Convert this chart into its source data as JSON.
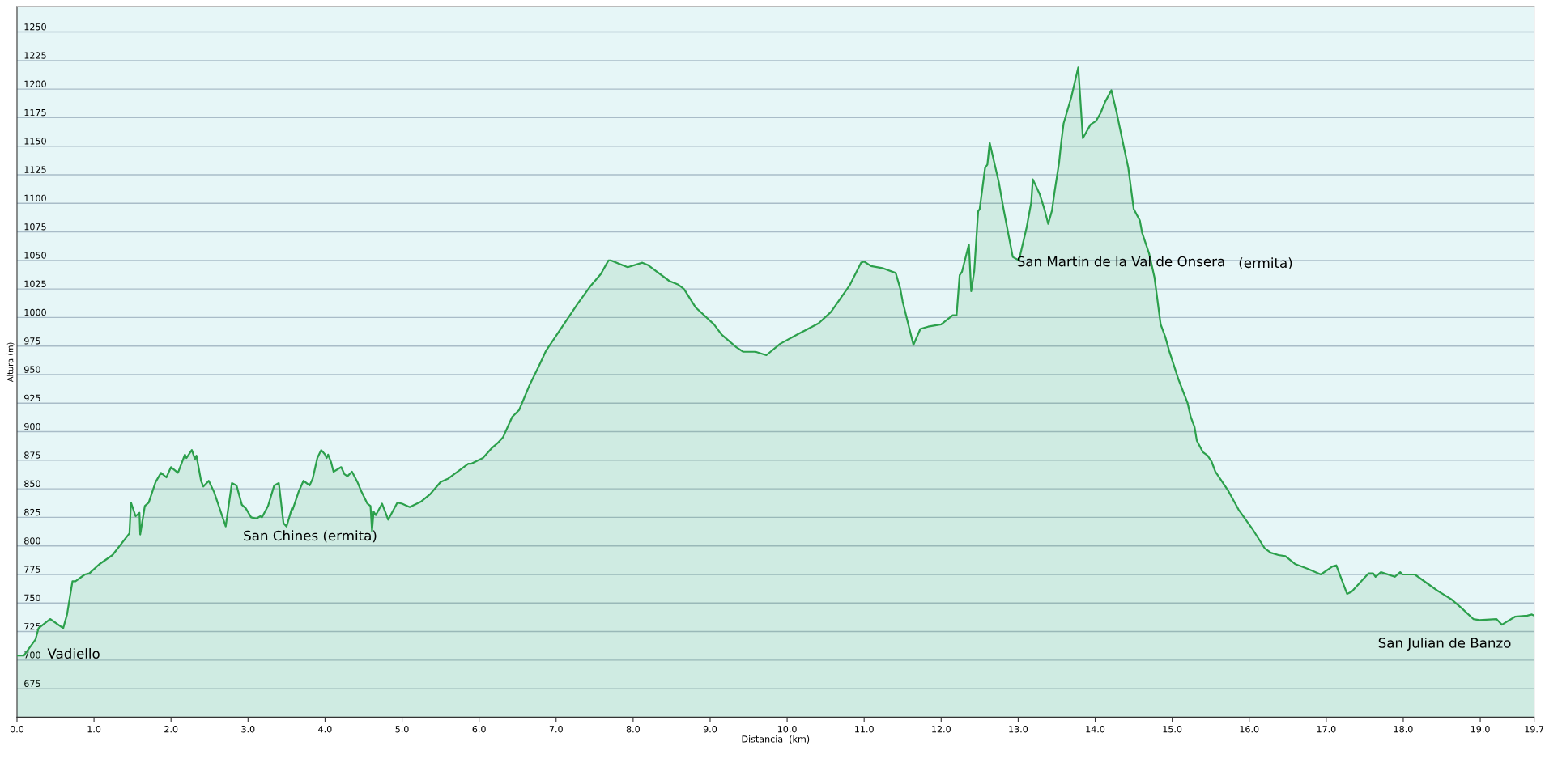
{
  "chart_data": {
    "type": "area",
    "xlabel": "Distancia  (km)",
    "ylabel": "Altura (m)",
    "x": [
      0,
      0.09,
      0.24,
      0.28,
      0.43,
      0.6,
      0.65,
      0.72,
      0.76,
      0.88,
      0.94,
      1.07,
      1.24,
      1.46,
      1.48,
      1.54,
      1.59,
      1.6,
      1.66,
      1.71,
      1.8,
      1.87,
      1.94,
      2.0,
      2.09,
      2.18,
      2.2,
      2.27,
      2.31,
      2.33,
      2.39,
      2.42,
      2.49,
      2.56,
      2.63,
      2.71,
      2.79,
      2.85,
      2.92,
      2.97,
      3.04,
      3.11,
      3.16,
      3.18,
      3.26,
      3.34,
      3.4,
      3.46,
      3.5,
      3.57,
      3.58,
      3.66,
      3.72,
      3.8,
      3.84,
      3.9,
      3.95,
      4.0,
      4.02,
      4.04,
      4.08,
      4.11,
      4.21,
      4.25,
      4.29,
      4.35,
      4.42,
      4.47,
      4.55,
      4.59,
      4.61,
      4.63,
      4.66,
      4.74,
      4.82,
      4.94,
      5.0,
      5.1,
      5.25,
      5.36,
      5.5,
      5.6,
      5.74,
      5.86,
      5.9,
      6.05,
      6.17,
      6.24,
      6.31,
      6.43,
      6.52,
      6.65,
      6.78,
      6.87,
      7.28,
      7.44,
      7.58,
      7.68,
      7.71,
      7.93,
      8.12,
      8.19,
      8.47,
      8.58,
      8.66,
      8.81,
      9.05,
      9.15,
      9.34,
      9.43,
      9.59,
      9.73,
      9.91,
      10.13,
      10.41,
      10.57,
      10.81,
      10.96,
      11.0,
      11.09,
      11.25,
      11.41,
      11.47,
      11.5,
      11.64,
      11.73,
      11.83,
      12.0,
      12.15,
      12.2,
      12.24,
      12.27,
      12.36,
      12.39,
      12.43,
      12.48,
      12.5,
      12.57,
      12.6,
      12.63,
      12.75,
      12.81,
      12.93,
      13.01,
      13.11,
      13.17,
      13.19,
      13.28,
      13.34,
      13.39,
      13.44,
      13.47,
      13.53,
      13.56,
      13.59,
      13.69,
      13.78,
      13.84,
      13.94,
      14.01,
      14.07,
      14.13,
      14.21,
      14.28,
      14.37,
      14.43,
      14.5,
      14.58,
      14.61,
      14.7,
      14.77,
      14.85,
      14.91,
      14.96,
      15.08,
      15.2,
      15.24,
      15.29,
      15.32,
      15.4,
      15.46,
      15.51,
      15.56,
      15.73,
      15.86,
      16.04,
      16.2,
      16.28,
      16.38,
      16.47,
      16.6,
      16.76,
      16.93,
      17.08,
      17.13,
      17.27,
      17.33,
      17.55,
      17.61,
      17.64,
      17.71,
      17.89,
      17.96,
      17.99,
      18.15,
      18.44,
      18.63,
      18.75,
      18.91,
      18.99,
      19.21,
      19.28,
      19.45,
      19.61,
      19.67,
      19.7
    ],
    "series": [
      {
        "color": "#2ca04c",
        "values": [
          704,
          704,
          718,
          728,
          736,
          728,
          740,
          769,
          769,
          775,
          776,
          784,
          792,
          811,
          838,
          826,
          829,
          810,
          835,
          838,
          856,
          864,
          860,
          869,
          864,
          880,
          877,
          884,
          876,
          879,
          857,
          852,
          857,
          847,
          833,
          817,
          855,
          853,
          836,
          833,
          825,
          824,
          826,
          825,
          835,
          853,
          855,
          820,
          817,
          833,
          832,
          848,
          857,
          853,
          859,
          877,
          884,
          880,
          877,
          880,
          873,
          865,
          869,
          863,
          861,
          865,
          856,
          848,
          837,
          835,
          813,
          830,
          827,
          837,
          823,
          838,
          837,
          834,
          839,
          845,
          856,
          859,
          866,
          872,
          872,
          877,
          886,
          890,
          895,
          913,
          919,
          940,
          958,
          971,
          1012,
          1027,
          1038,
          1050,
          1050,
          1044,
          1048,
          1046,
          1032,
          1029,
          1025,
          1009,
          994,
          985,
          974,
          970,
          970,
          967,
          977,
          985,
          995,
          1005,
          1028,
          1048,
          1049,
          1045,
          1043,
          1039,
          1025,
          1014,
          976,
          990,
          992,
          994,
          1002,
          1002,
          1037,
          1040,
          1064,
          1023,
          1041,
          1093,
          1095,
          1131,
          1134,
          1153,
          1118,
          1095,
          1053,
          1050,
          1079,
          1101,
          1121,
          1108,
          1095,
          1082,
          1094,
          1109,
          1135,
          1154,
          1170,
          1193,
          1219,
          1157,
          1169,
          1172,
          1179,
          1189,
          1199,
          1179,
          1150,
          1131,
          1095,
          1085,
          1074,
          1056,
          1035,
          994,
          983,
          971,
          946,
          925,
          913,
          904,
          892,
          882,
          879,
          874,
          865,
          848,
          832,
          815,
          798,
          794,
          792,
          791,
          784,
          780,
          775,
          782,
          783,
          758,
          760,
          776,
          776,
          773,
          777,
          773,
          777,
          775,
          775,
          761,
          753,
          746,
          736,
          735,
          736,
          731,
          738,
          739,
          740,
          739
        ]
      }
    ],
    "xlim": [
      0,
      19.7
    ],
    "xticks": [
      {
        "value": 0,
        "label": "0.0"
      },
      {
        "value": 1,
        "label": "1.0"
      },
      {
        "value": 2,
        "label": "2.0"
      },
      {
        "value": 3,
        "label": "3.0"
      },
      {
        "value": 4,
        "label": "4.0"
      },
      {
        "value": 5,
        "label": "5.0"
      },
      {
        "value": 6,
        "label": "6.0"
      },
      {
        "value": 7,
        "label": "7.0"
      },
      {
        "value": 8,
        "label": "8.0"
      },
      {
        "value": 9,
        "label": "9.0"
      },
      {
        "value": 10,
        "label": "10.0"
      },
      {
        "value": 11,
        "label": "11.0"
      },
      {
        "value": 12,
        "label": "12.0"
      },
      {
        "value": 13,
        "label": "13.0"
      },
      {
        "value": 14,
        "label": "14.0"
      },
      {
        "value": 15,
        "label": "15.0"
      },
      {
        "value": 16,
        "label": "16.0"
      },
      {
        "value": 17,
        "label": "17.0"
      },
      {
        "value": 18,
        "label": "18.0"
      },
      {
        "value": 19,
        "label": "19.0"
      },
      19.7
    ],
    "ylim": [
      650,
      1272
    ],
    "yticks": [
      675,
      700,
      725,
      750,
      775,
      800,
      825,
      850,
      875,
      900,
      925,
      950,
      975,
      1000,
      1025,
      1050,
      1075,
      1100,
      1125,
      1150,
      1175,
      1200,
      1225,
      1250
    ],
    "grid": "y",
    "annotations": [
      "Vadiello",
      "San Chines (ermita)",
      "San Martin de la Val de Onsera",
      "(ermita)",
      "San Julian de Banzo"
    ]
  }
}
